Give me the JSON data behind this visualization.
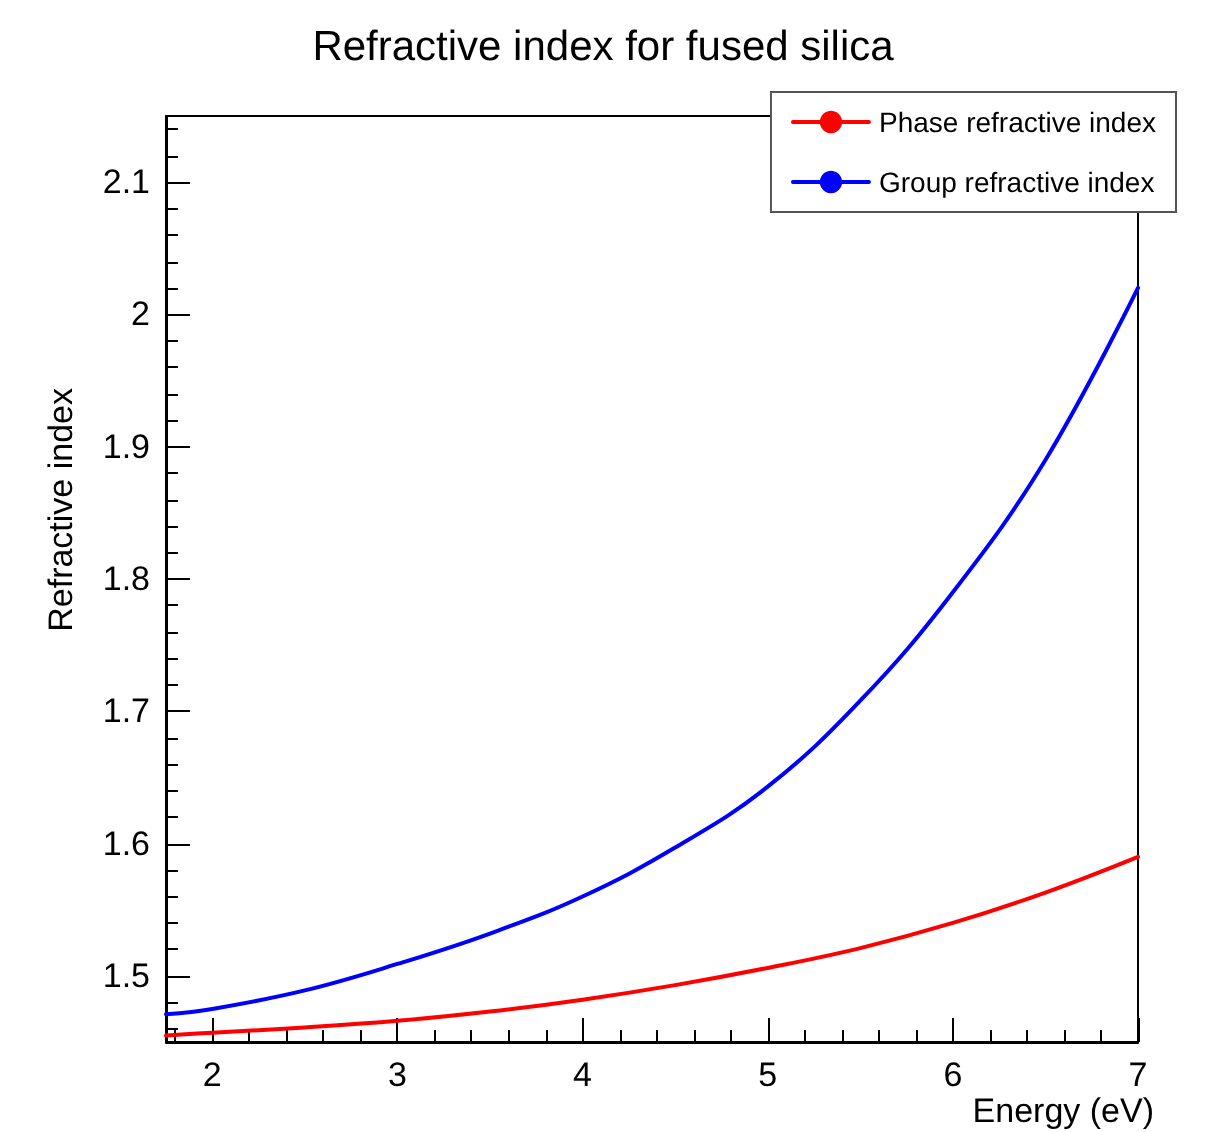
{
  "chart_data": {
    "type": "line",
    "title": "Refractive index for fused silica",
    "xlabel": "Energy (eV)",
    "ylabel": "Refractive index",
    "x": [
      1.75,
      2,
      2.5,
      3,
      3.5,
      4,
      4.5,
      5,
      5.5,
      6,
      6.5,
      7
    ],
    "series": [
      {
        "name": "Phase refractive index",
        "color": "#ff0000",
        "values": [
          1.455,
          1.457,
          1.461,
          1.466,
          1.473,
          1.482,
          1.493,
          1.506,
          1.521,
          1.54,
          1.563,
          1.59
        ]
      },
      {
        "name": "Group refractive index",
        "color": "#0000ff",
        "values": [
          1.471,
          1.475,
          1.489,
          1.509,
          1.532,
          1.56,
          1.597,
          1.643,
          1.708,
          1.79,
          1.89,
          2.02
        ]
      }
    ],
    "xlim": [
      1.75,
      7
    ],
    "xticks": [
      2,
      3,
      4,
      5,
      6,
      7
    ],
    "ylim": [
      1.45,
      2.15
    ],
    "yticks": [
      1.5,
      1.6,
      1.7,
      1.8,
      1.9,
      2,
      2.1
    ],
    "grid": false,
    "legend": "top right",
    "marker": "none",
    "line_style": "solid"
  }
}
